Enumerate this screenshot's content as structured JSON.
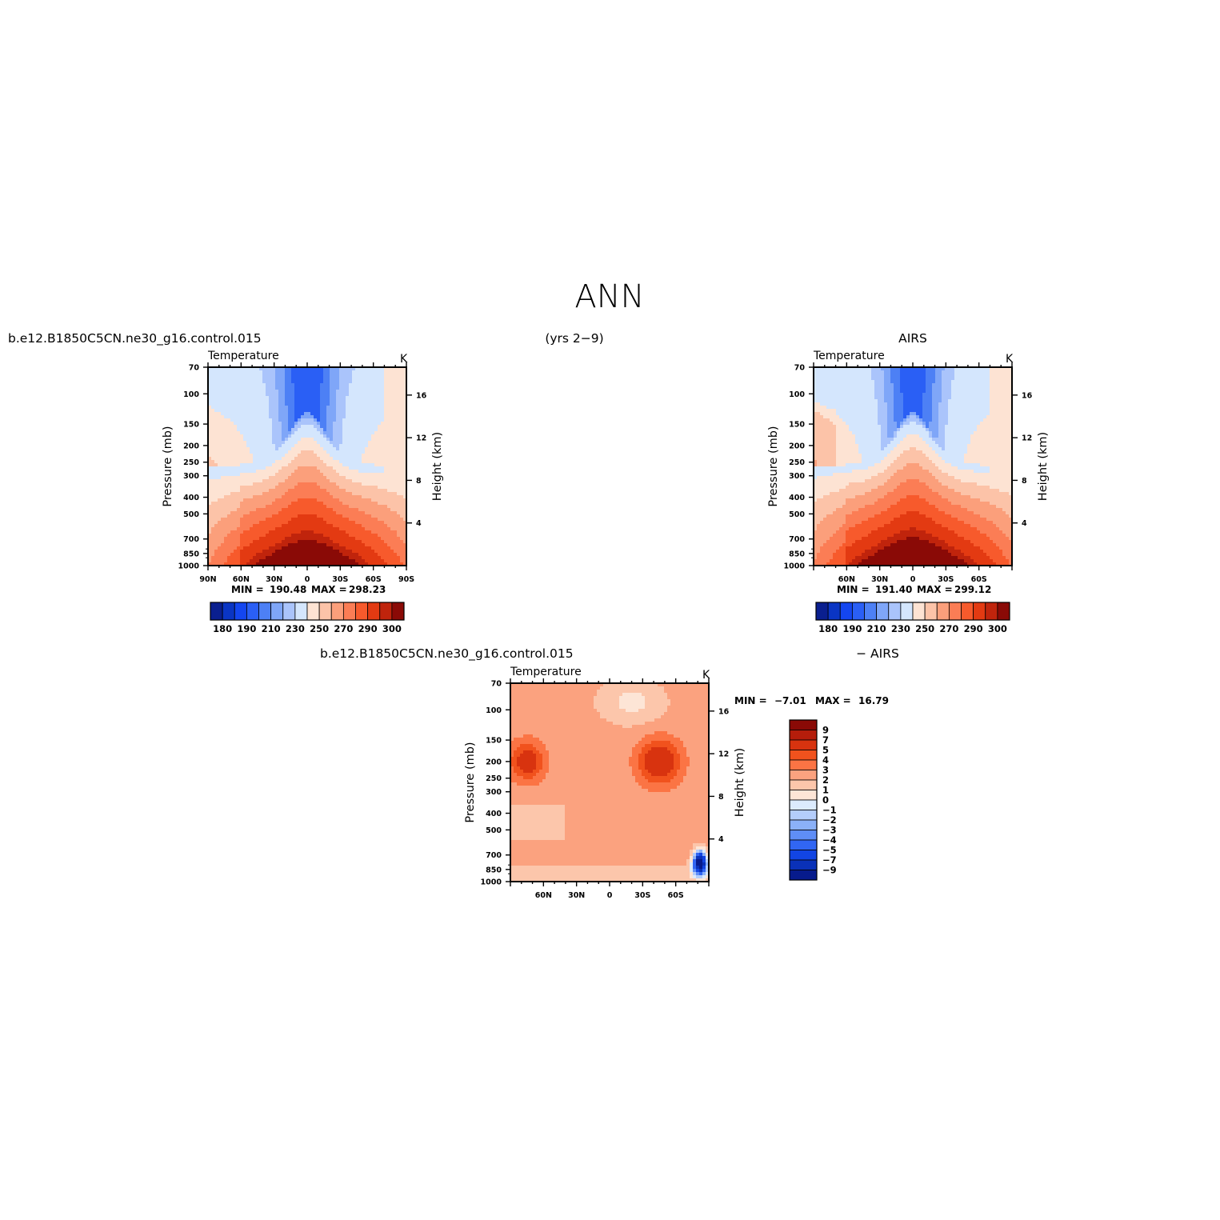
{
  "figure": {
    "title": "ANN",
    "left_header": "b.e12.B1850C5CN.ne30_g16.control.015",
    "center_header": "(yrs 2−9)",
    "right_header": "AIRS",
    "bottom_header_left": "b.e12.B1850C5CN.ne30_g16.control.015",
    "bottom_header_right": "− AIRS"
  },
  "chart_data": [
    {
      "id": "model",
      "type": "heatmap",
      "title": "Temperature",
      "units": "K",
      "ylabel": "Pressure (mb)",
      "ylabel2": "Height (km)",
      "x_ticks": [
        "90N",
        "60N",
        "30N",
        "0",
        "30S",
        "60S",
        "90S"
      ],
      "x_range": [
        90,
        -90
      ],
      "y_ticks": [
        70,
        100,
        150,
        200,
        250,
        300,
        400,
        500,
        700,
        850,
        1000
      ],
      "y_range": [
        70,
        1000
      ],
      "y2_ticks": [
        4,
        8,
        12,
        16
      ],
      "min_label": "MIN =",
      "min": "190.48",
      "max_label": "MAX =",
      "max": "298.23",
      "levels": [
        180,
        185,
        190,
        195,
        200,
        205,
        210,
        220,
        230,
        240,
        250,
        260,
        270,
        280,
        285,
        290,
        295,
        300
      ],
      "colorbar_labels": [
        "180",
        "190",
        "210",
        "230",
        "250",
        "270",
        "290",
        "300"
      ]
    },
    {
      "id": "airs",
      "type": "heatmap",
      "title": "Temperature",
      "units": "K",
      "ylabel": "Pressure (mb)",
      "ylabel2": "Height (km)",
      "x_ticks": [
        "60N",
        "30N",
        "0",
        "30S",
        "60S"
      ],
      "x_range": [
        90,
        -90
      ],
      "y_ticks": [
        70,
        100,
        150,
        200,
        250,
        300,
        400,
        500,
        700,
        850,
        1000
      ],
      "y_range": [
        70,
        1000
      ],
      "y2_ticks": [
        4,
        8,
        12,
        16
      ],
      "min_label": "MIN =",
      "min": "191.40",
      "max_label": "MAX =",
      "max": "299.12",
      "levels": [
        180,
        185,
        190,
        195,
        200,
        205,
        210,
        220,
        230,
        240,
        250,
        260,
        270,
        280,
        285,
        290,
        295,
        300
      ],
      "colorbar_labels": [
        "180",
        "190",
        "210",
        "230",
        "250",
        "270",
        "290",
        "300"
      ]
    },
    {
      "id": "diff",
      "type": "heatmap",
      "title": "Temperature",
      "units": "K",
      "ylabel": "Pressure (mb)",
      "ylabel2": "Height (km)",
      "x_ticks": [
        "60N",
        "30N",
        "0",
        "30S",
        "60S"
      ],
      "x_range": [
        90,
        -90
      ],
      "y_ticks": [
        70,
        100,
        150,
        200,
        250,
        300,
        400,
        500,
        700,
        850,
        1000
      ],
      "y_range": [
        70,
        1000
      ],
      "y2_ticks": [
        4,
        8,
        12,
        16
      ],
      "min_label": "MIN =",
      "min": "−7.01",
      "max_label": "MAX =",
      "max": "16.79",
      "levels": [
        -9,
        -7,
        -5,
        -4,
        -3,
        -2,
        -1,
        0,
        1,
        2,
        3,
        4,
        5,
        7,
        9
      ],
      "colorbar_labels": [
        "9",
        "7",
        "5",
        "4",
        "3",
        "2",
        "1",
        "0",
        "−1",
        "−2",
        "−3",
        "−4",
        "−5",
        "−7",
        "−9"
      ]
    }
  ],
  "palettes": {
    "temperature": [
      "#0a1f8f",
      "#0a35c4",
      "#1446f0",
      "#2a5ff5",
      "#4d80f5",
      "#7fa6f8",
      "#aac4fb",
      "#d4e6fd",
      "#fde3d3",
      "#fcc3a8",
      "#fb9f7b",
      "#fb7d55",
      "#f75a2c",
      "#e33a12",
      "#c0240c",
      "#8a0a06"
    ],
    "difference": [
      "#8a0a06",
      "#b51d0b",
      "#d8330f",
      "#f1521d",
      "#fb7444",
      "#fba27f",
      "#fcc6ab",
      "#fde5d6",
      "#dcebfd",
      "#b4cdfb",
      "#8bb1f8",
      "#5f8ef6",
      "#3166f3",
      "#1245e3",
      "#0a31b8",
      "#071b8c"
    ]
  }
}
